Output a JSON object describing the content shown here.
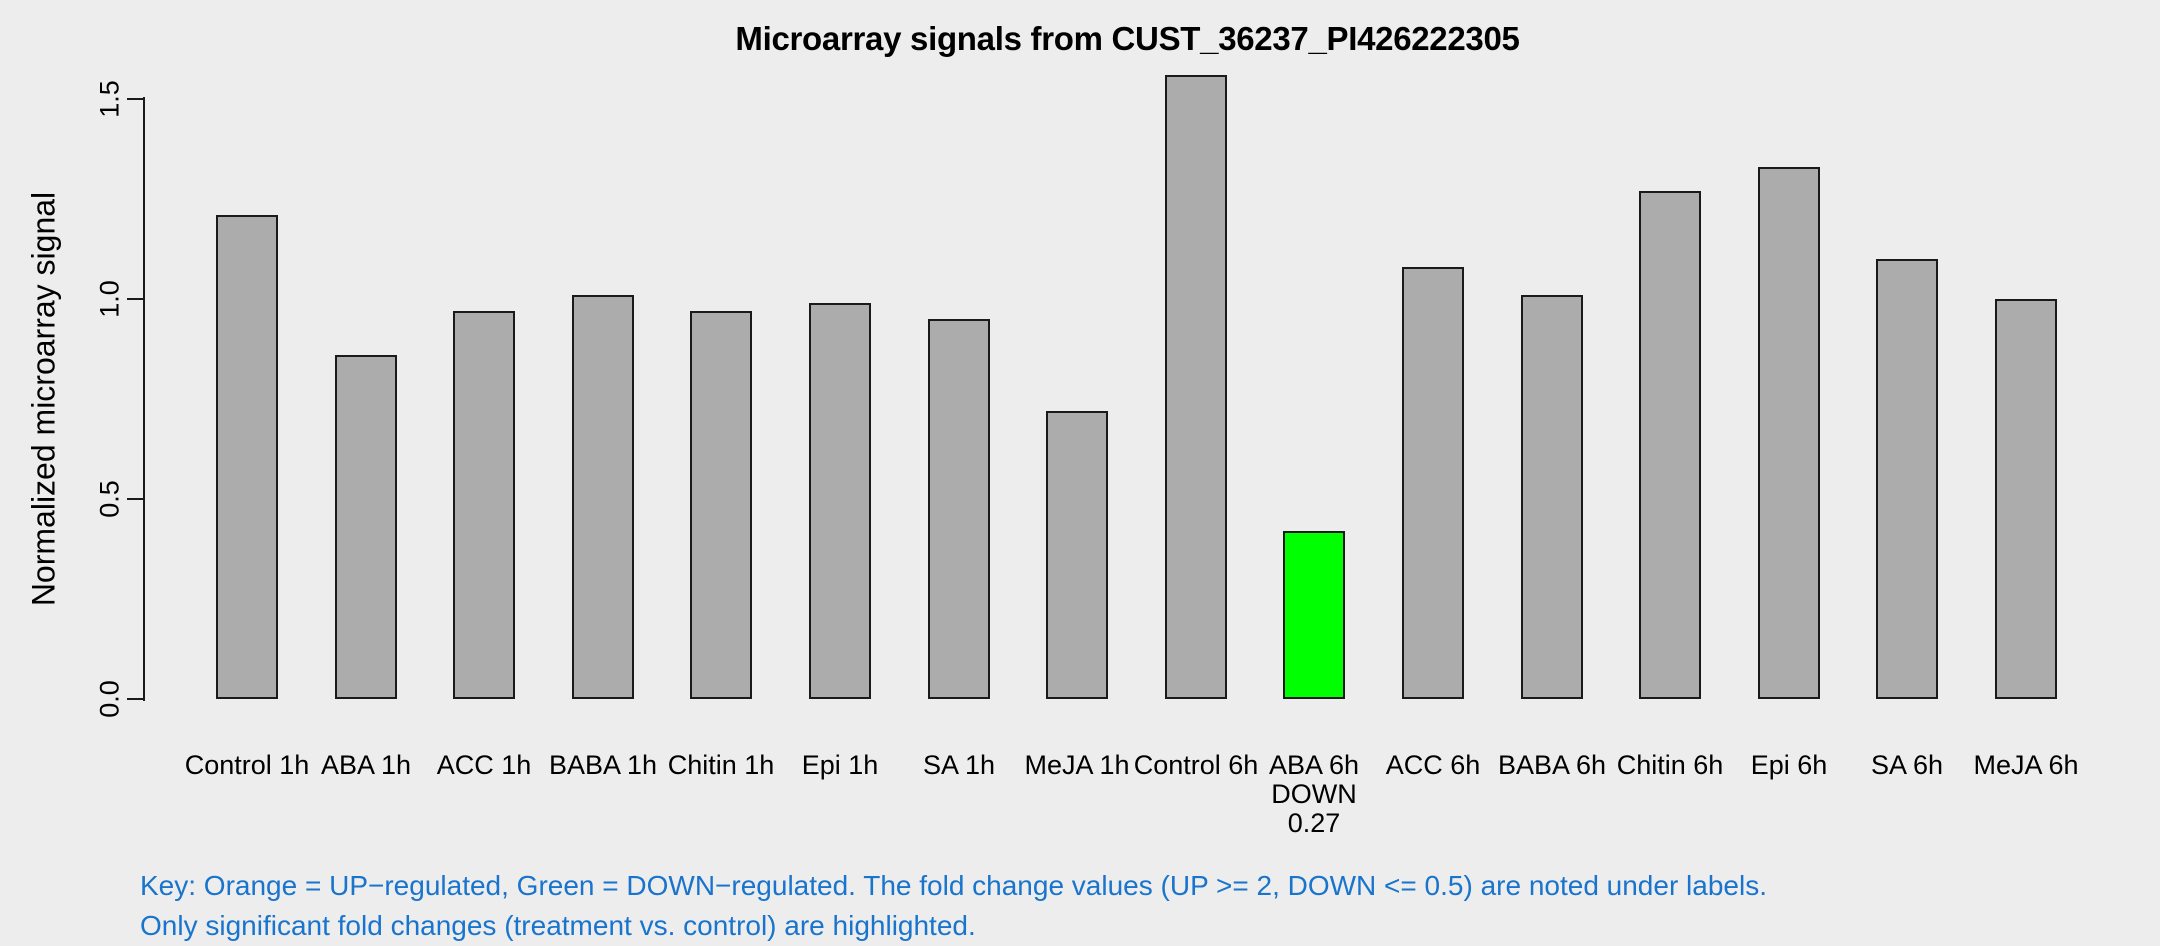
{
  "title": "Microarray signals from CUST_36237_PI426222305",
  "y_axis": {
    "label": "Normalized microarray signal",
    "tick_labels": [
      "0.0",
      "0.5",
      "1.0",
      "1.5"
    ]
  },
  "footer": {
    "line1": "Key: Orange = UP−regulated, Green = DOWN−regulated. The fold change values (UP >= 2, DOWN <= 0.5) are noted under labels.",
    "line2": "Only significant fold changes (treatment vs. control) are highlighted.",
    "color": "#1874CD"
  },
  "colors": {
    "background": "#EDEDED",
    "bar_default": "#ACACAC",
    "bar_down_regulated": "#00FF00",
    "bar_up_regulated": "#FFA500",
    "bar_border": "#1A1A1A",
    "axis": "#1A1A1A",
    "text": "#000000",
    "footer_blue": "#1874CD"
  },
  "chart_data": {
    "type": "bar",
    "title": "Microarray signals from CUST_36237_PI426222305",
    "xlabel": "",
    "ylabel": "Normalized microarray signal",
    "ylim": [
      0,
      1.56
    ],
    "yticks": [
      {
        "value": 0.0,
        "label": "0.0"
      },
      {
        "value": 0.5,
        "label": "0.5"
      },
      {
        "value": 1.0,
        "label": "1.0"
      },
      {
        "value": 1.5,
        "label": "1.5"
      }
    ],
    "grid": false,
    "legend_position": "none",
    "categories": [
      "Control 1h",
      "ABA 1h",
      "ACC 1h",
      "BABA 1h",
      "Chitin 1h",
      "Epi 1h",
      "SA 1h",
      "MeJA 1h",
      "Control 6h",
      "ABA 6h",
      "ACC 6h",
      "BABA 6h",
      "Chitin 6h",
      "Epi 6h",
      "SA 6h",
      "MeJA 6h"
    ],
    "bars": [
      {
        "label": "Control 1h",
        "value": 1.21,
        "color_key": "bar_default",
        "sublabels": []
      },
      {
        "label": "ABA 1h",
        "value": 0.86,
        "color_key": "bar_default",
        "sublabels": []
      },
      {
        "label": "ACC 1h",
        "value": 0.97,
        "color_key": "bar_default",
        "sublabels": []
      },
      {
        "label": "BABA 1h",
        "value": 1.01,
        "color_key": "bar_default",
        "sublabels": []
      },
      {
        "label": "Chitin 1h",
        "value": 0.97,
        "color_key": "bar_default",
        "sublabels": []
      },
      {
        "label": "Epi 1h",
        "value": 0.99,
        "color_key": "bar_default",
        "sublabels": []
      },
      {
        "label": "SA 1h",
        "value": 0.95,
        "color_key": "bar_default",
        "sublabels": []
      },
      {
        "label": "MeJA 1h",
        "value": 0.72,
        "color_key": "bar_default",
        "sublabels": []
      },
      {
        "label": "Control 6h",
        "value": 1.56,
        "color_key": "bar_default",
        "sublabels": []
      },
      {
        "label": "ABA 6h",
        "value": 0.42,
        "color_key": "bar_down_regulated",
        "sublabels": [
          "DOWN",
          "0.27"
        ],
        "regulation": "DOWN",
        "fold_change": "0.27"
      },
      {
        "label": "ACC 6h",
        "value": 1.08,
        "color_key": "bar_default",
        "sublabels": []
      },
      {
        "label": "BABA 6h",
        "value": 1.01,
        "color_key": "bar_default",
        "sublabels": []
      },
      {
        "label": "Chitin 6h",
        "value": 1.27,
        "color_key": "bar_default",
        "sublabels": []
      },
      {
        "label": "Epi 6h",
        "value": 1.33,
        "color_key": "bar_default",
        "sublabels": []
      },
      {
        "label": "SA 6h",
        "value": 1.1,
        "color_key": "bar_default",
        "sublabels": []
      },
      {
        "label": "MeJA 6h",
        "value": 1.0,
        "color_key": "bar_default",
        "sublabels": []
      }
    ]
  }
}
